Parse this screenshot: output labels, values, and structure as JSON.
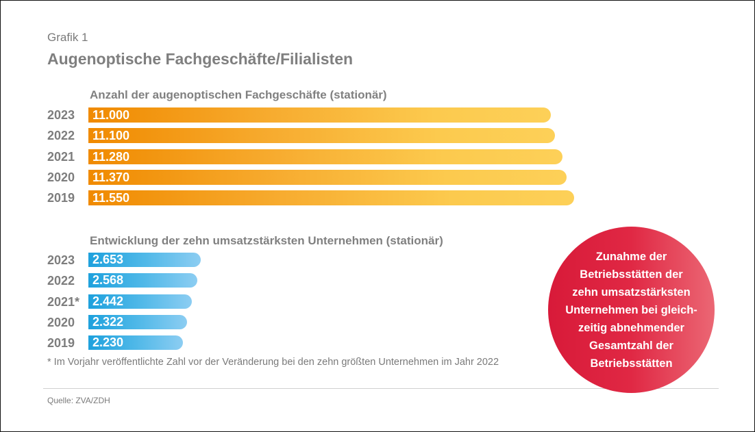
{
  "header": {
    "label": "Grafik 1",
    "title": "Augenoptische Fachgeschäfte/Filialisten"
  },
  "chart_data": [
    {
      "type": "bar",
      "orientation": "horizontal",
      "title": "Anzahl der augenoptischen Fachgeschäfte (stationär)",
      "categories": [
        "2023",
        "2022",
        "2021",
        "2020",
        "2019"
      ],
      "values": [
        11000,
        11100,
        11280,
        11370,
        11550
      ],
      "value_labels": [
        "11.000",
        "11.100",
        "11.280",
        "11.370",
        "11.550"
      ],
      "color": "#f08a00",
      "xlabel": "",
      "ylabel": "",
      "grid": false
    },
    {
      "type": "bar",
      "orientation": "horizontal",
      "title": "Entwicklung der zehn umsatzstärksten Unternehmen (stationär)",
      "categories": [
        "2023",
        "2022",
        "2021*",
        "2020",
        "2019"
      ],
      "values": [
        2653,
        2568,
        2442,
        2322,
        2230
      ],
      "value_labels": [
        "2.653",
        "2.568",
        "2.442",
        "2.322",
        "2.230"
      ],
      "color": "#1ea1dd",
      "xlabel": "",
      "ylabel": "",
      "grid": false
    }
  ],
  "callout": {
    "text": "Zunahme der\nBetriebsstätten der\nzehn umsatzstärksten\nUnternehmen bei gleich-\nzeitig abnehmender\nGesamtzahl der\nBetriebsstätten",
    "color": "#d81a39"
  },
  "footnote": "* Im Vorjahr veröffentlichte Zahl vor der Veränderung bei den zehn größten Unternehmen im Jahr 2022",
  "source": "Quelle: ZVA/ZDH"
}
